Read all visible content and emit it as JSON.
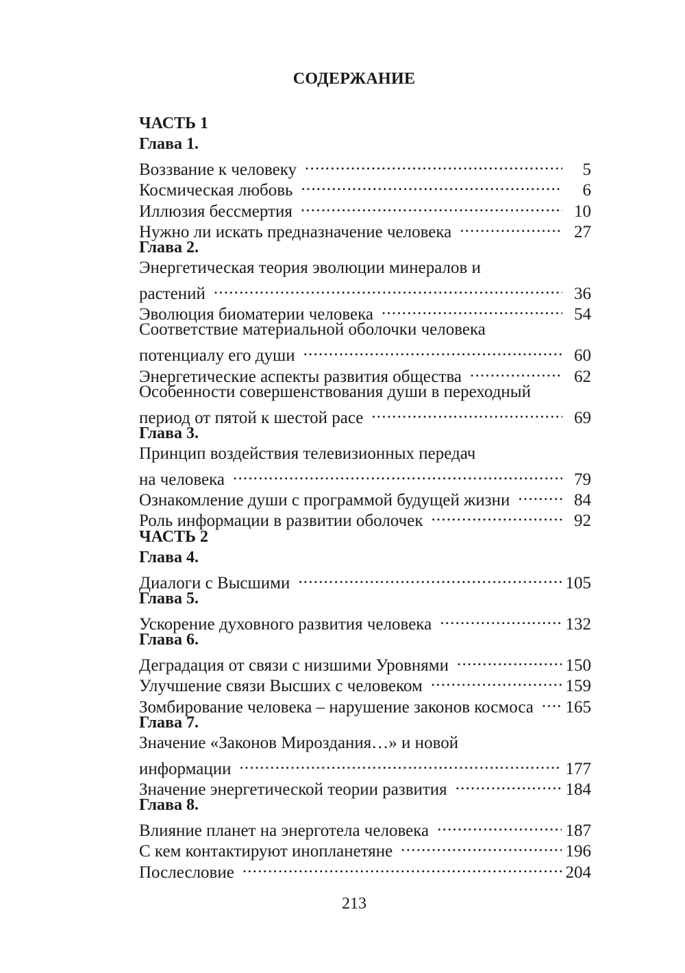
{
  "title": "СОДЕРЖАНИЕ",
  "lines": [
    {
      "kind": "part",
      "text": "ЧАСТЬ 1"
    },
    {
      "kind": "chapter",
      "text": "Глава 1."
    },
    {
      "kind": "entry",
      "text": "Воззвание к человеку",
      "page": "5"
    },
    {
      "kind": "entry",
      "text": "Космическая  любовь",
      "page": "6"
    },
    {
      "kind": "entry",
      "text": "Иллюзия бессмертия",
      "page": "10"
    },
    {
      "kind": "entry",
      "text": "Нужно ли искать предназначение человека",
      "page": "27"
    },
    {
      "kind": "chapter",
      "text": "Глава 2."
    },
    {
      "kind": "cont",
      "text": "Энергетическая теория эволюции минералов и"
    },
    {
      "kind": "entry",
      "text": "растений",
      "page": "36"
    },
    {
      "kind": "entry",
      "text": "Эволюция биоматерии человека",
      "page": "54"
    },
    {
      "kind": "cont",
      "text": "Соответствие материальной оболочки человека"
    },
    {
      "kind": "entry",
      "text": "потенциалу его души",
      "page": "60"
    },
    {
      "kind": "entry",
      "text": "Энергетические аспекты  развития общества",
      "page": "62"
    },
    {
      "kind": "cont",
      "text": "Особенности совершенствования души в переходный"
    },
    {
      "kind": "entry",
      "text": "период от пятой к шестой расе",
      "page": "69"
    },
    {
      "kind": "chapter",
      "text": "Глава 3."
    },
    {
      "kind": "cont",
      "text": "Принцип воздействия телевизионных передач"
    },
    {
      "kind": "entry",
      "text": "на человека",
      "page": "79"
    },
    {
      "kind": "entry",
      "text": "Ознакомление души с программой будущей жизни",
      "page": "84"
    },
    {
      "kind": "entry",
      "text": "Роль информации в развитии оболочек",
      "page": "92"
    },
    {
      "kind": "part",
      "text": "ЧАСТЬ 2"
    },
    {
      "kind": "chapter",
      "text": "Глава 4."
    },
    {
      "kind": "entry",
      "text": "Диалоги с Высшими",
      "page": "105"
    },
    {
      "kind": "chapter",
      "text": "Глава 5."
    },
    {
      "kind": "entry",
      "text": "Ускорение духовного развития человека",
      "page": "132"
    },
    {
      "kind": "chapter",
      "text": "Глава 6."
    },
    {
      "kind": "entry",
      "text": "Деградация от связи с низшими Уровнями",
      "page": "150"
    },
    {
      "kind": "entry",
      "text": "Улучшение связи Высших с человеком",
      "page": "159"
    },
    {
      "kind": "entry",
      "text": "Зомбирование человека – нарушение законов космоса",
      "page": "165"
    },
    {
      "kind": "chapter",
      "text": "Глава 7."
    },
    {
      "kind": "cont",
      "text": "Значение «Законов Мироздания…» и новой"
    },
    {
      "kind": "entry",
      "text": "информации",
      "page": "177"
    },
    {
      "kind": "entry",
      "text": "Значение энергетической теории развития",
      "page": "184"
    },
    {
      "kind": "chapter",
      "text": "Глава 8."
    },
    {
      "kind": "entry",
      "text": "Влияние планет на энерготела человека",
      "page": "187"
    },
    {
      "kind": "entry",
      "text": "С кем контактируют инопланетяне",
      "page": "196"
    },
    {
      "kind": "entry",
      "text": "Послесловие",
      "page": "204"
    }
  ],
  "page_number": "213"
}
